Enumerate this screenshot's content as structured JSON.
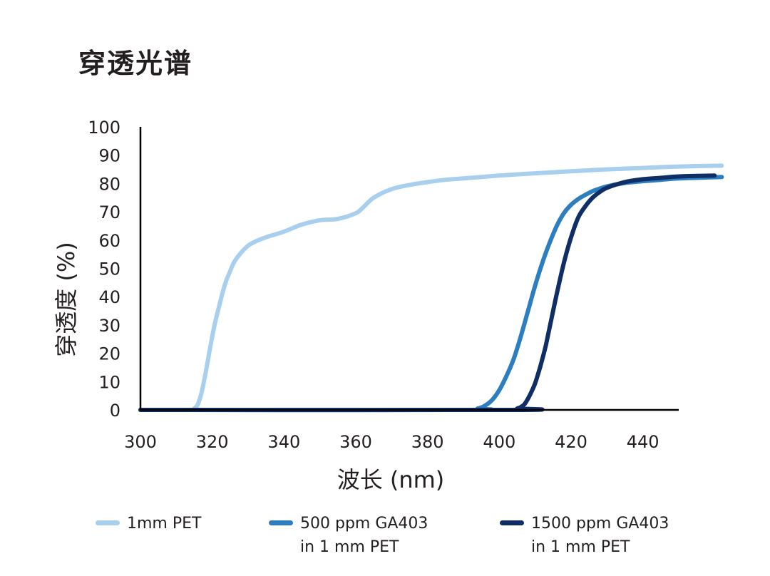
{
  "page": {
    "title": "穿透光谱"
  },
  "chart_data": {
    "type": "line",
    "title": "",
    "xlabel": "波长 (nm)",
    "ylabel": "穿透度 (%)",
    "xlim": [
      300,
      450
    ],
    "ylim": [
      0,
      100
    ],
    "xticks": [
      300,
      320,
      340,
      360,
      380,
      400,
      420,
      440
    ],
    "yticks": [
      0,
      10,
      20,
      30,
      40,
      50,
      60,
      70,
      80,
      90,
      100
    ],
    "grid": false,
    "legend_position": "bottom",
    "series": [
      {
        "name": "1mm PET",
        "color": "#a9cfee",
        "x": [
          300,
          314,
          315,
          316,
          317,
          318,
          319,
          320,
          321,
          322,
          323,
          324,
          325,
          326,
          328,
          330,
          332,
          335,
          340,
          345,
          350,
          355,
          360,
          362,
          365,
          370,
          375,
          380,
          385,
          390,
          395,
          400,
          410,
          420,
          430,
          440,
          450,
          462
        ],
        "y": [
          0,
          0,
          0.5,
          2,
          6,
          12,
          19,
          26,
          32,
          37,
          42,
          46,
          49,
          52,
          55.5,
          58,
          59.5,
          61,
          63,
          65.5,
          67,
          67.5,
          69.5,
          71.5,
          75,
          78,
          79.5,
          80.5,
          81.3,
          81.8,
          82.3,
          82.8,
          83.6,
          84.3,
          85,
          85.5,
          86,
          86.3
        ]
      },
      {
        "name": "500 ppm GA403\nin 1 mm PET",
        "color": "#2d7ec1",
        "x": [
          300,
          390,
          394,
          396,
          398,
          400,
          402,
          404,
          406,
          408,
          410,
          412,
          414,
          416,
          418,
          420,
          422,
          424,
          426,
          428,
          430,
          435,
          440,
          445,
          450,
          462
        ],
        "y": [
          0,
          0,
          0.5,
          1.5,
          3.5,
          7,
          12,
          18,
          26,
          35,
          44,
          52,
          59,
          65,
          69.5,
          72.5,
          74.5,
          76,
          77.3,
          78.2,
          79,
          80.2,
          80.8,
          81.3,
          81.8,
          82.3
        ]
      },
      {
        "name": "1500 ppm GA403\nin 1 mm PET",
        "color": "#0f2e66",
        "x": [
          300,
          404,
          405,
          406,
          407,
          408,
          409,
          410,
          411,
          412,
          413,
          414,
          415,
          416,
          418,
          420,
          422,
          424,
          426,
          428,
          430,
          435,
          440,
          445,
          450,
          460
        ],
        "y": [
          0,
          0,
          0.5,
          1,
          2,
          4,
          6.5,
          9.5,
          13.5,
          18,
          23,
          29,
          35,
          41,
          52,
          61,
          68,
          72,
          75,
          77,
          78.5,
          80.5,
          81.5,
          82,
          82.5,
          82.8
        ]
      }
    ]
  }
}
